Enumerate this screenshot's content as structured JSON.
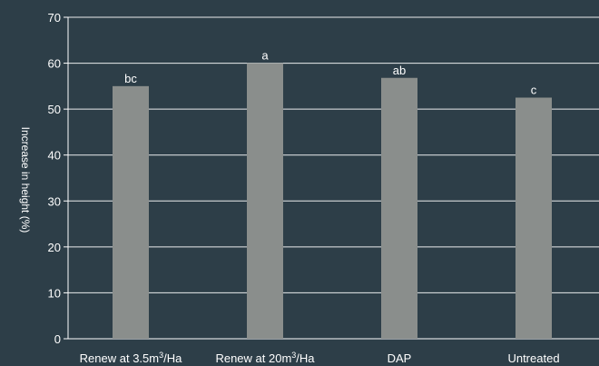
{
  "chart_data": {
    "type": "bar",
    "ylabel": "Increase in height (%)",
    "ylim": [
      0,
      70
    ],
    "yticks": [
      0,
      10,
      20,
      30,
      40,
      50,
      60,
      70
    ],
    "grid": true,
    "categories": [
      {
        "label": "Renew at 3.5m",
        "sup": "3",
        "suffix": "/Ha"
      },
      {
        "label": "Renew at 20m",
        "sup": "3",
        "suffix": "/Ha"
      },
      {
        "label": "DAP",
        "sup": "",
        "suffix": ""
      },
      {
        "label": "Untreated",
        "sup": "",
        "suffix": ""
      }
    ],
    "values": [
      55,
      60,
      56.8,
      52.5
    ],
    "bar_labels": [
      "bc",
      "a",
      "ab",
      "c"
    ],
    "colors": {
      "background": "#2d3e48",
      "bar": "#8a8e8c",
      "text": "#ffffff"
    }
  }
}
